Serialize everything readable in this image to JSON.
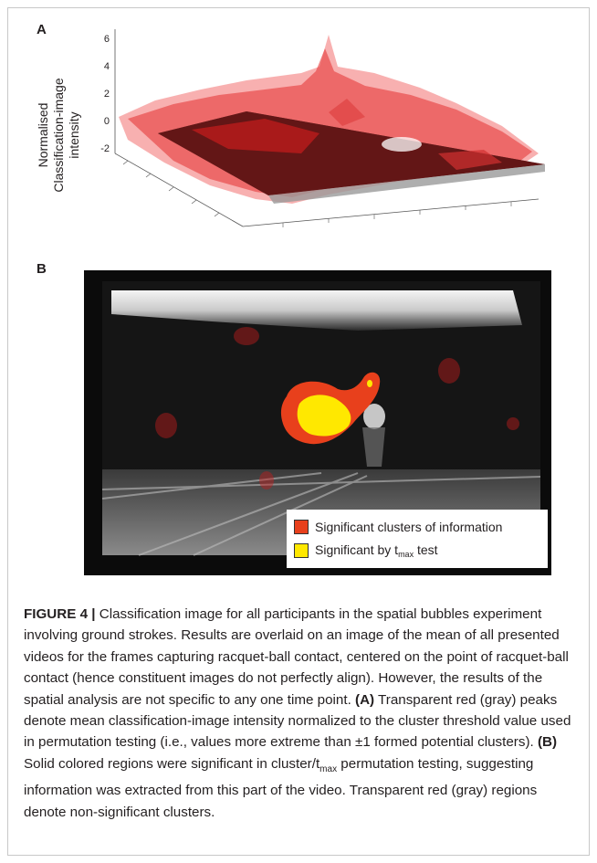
{
  "panel_a": {
    "label": "A",
    "z_axis_title": [
      "Normalised",
      "Classification-image",
      "intensity"
    ],
    "z_ticks": [
      "6",
      "4",
      "2",
      "0",
      "-2"
    ]
  },
  "panel_b": {
    "label": "B",
    "legend": [
      {
        "text": "Significant clusters of information",
        "color": "#e8401c"
      },
      {
        "text_main": "Significant by t",
        "text_sub": "max",
        "text_tail": " test",
        "color": "#ffe800"
      }
    ]
  },
  "caption": {
    "lead": "FIGURE 4 |",
    "part1": " Classification image for all participants in the spatial bubbles experiment involving ground strokes. Results are overlaid on an image of the mean of all presented videos for the frames capturing racquet-ball contact, centered on the point of racquet-ball contact (hence constituent images do not perfectly align). However, the results of the spatial analysis are not specific to any one time point. ",
    "a_label": "(A)",
    "part2": " Transparent red (gray) peaks denote mean classification-image intensity normalized to the cluster threshold value used in permutation testing (i.e., values more extreme than ±1 formed potential clusters). ",
    "b_label": "(B)",
    "part3": " Solid colored regions were significant in cluster/t",
    "part3_sub": "max",
    "part4": " permutation testing, suggesting information was extracted from this part of the video. Transparent red (gray) regions denote non-significant clusters."
  }
}
